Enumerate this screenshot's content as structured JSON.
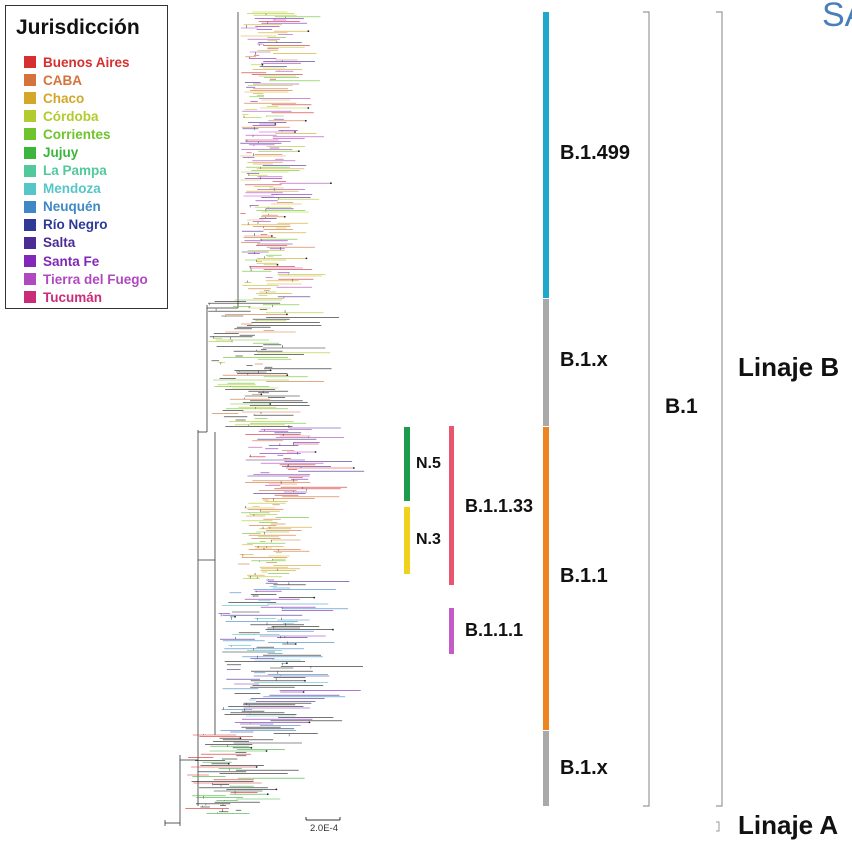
{
  "legend": {
    "title": "Jurisdicción",
    "items": [
      {
        "label": "Buenos Aires",
        "color": "#d62f2f"
      },
      {
        "label": "CABA",
        "color": "#d4733b"
      },
      {
        "label": "Chaco",
        "color": "#d2a72a"
      },
      {
        "label": "Córdoba",
        "color": "#b2cb2f"
      },
      {
        "label": "Corrientes",
        "color": "#6fc32b"
      },
      {
        "label": "Jujuy",
        "color": "#3cb53c"
      },
      {
        "label": "La Pampa",
        "color": "#52c99c"
      },
      {
        "label": "Mendoza",
        "color": "#56c6c8"
      },
      {
        "label": "Neuquén",
        "color": "#3f88c5"
      },
      {
        "label": "Río Negro",
        "color": "#2d3a96"
      },
      {
        "label": "Salta",
        "color": "#4b2c93"
      },
      {
        "label": "Santa Fe",
        "color": "#8228b8"
      },
      {
        "label": "Tierra del Fuego",
        "color": "#b048c0"
      },
      {
        "label": "Tucumán",
        "color": "#c92d7a"
      }
    ]
  },
  "scale_bar": {
    "label": "2.0E-4"
  },
  "header_fragment": "SA",
  "clades": {
    "b1_499": {
      "label": "B.1.499",
      "color": "#1fa8cc"
    },
    "b1x_upper": {
      "label": "B.1.x",
      "color": "#a9a9a9"
    },
    "b1_1": {
      "label": "B.1.1",
      "color": "#ee8420"
    },
    "b1x_lower": {
      "label": "B.1.x",
      "color": "#a9a9a9"
    },
    "b1_1_33": {
      "label": "B.1.1.33",
      "color": "#e8556e"
    },
    "b1_1_1": {
      "label": "B.1.1.1",
      "color": "#c35cc8"
    },
    "n5": {
      "label": "N.5",
      "color": "#1e9a4c"
    },
    "n3": {
      "label": "N.3",
      "color": "#f0d21e"
    },
    "b1": {
      "label": "B.1"
    },
    "linaje_b": {
      "label": "Linaje B"
    },
    "linaje_a": {
      "label": "Linaje A"
    }
  }
}
